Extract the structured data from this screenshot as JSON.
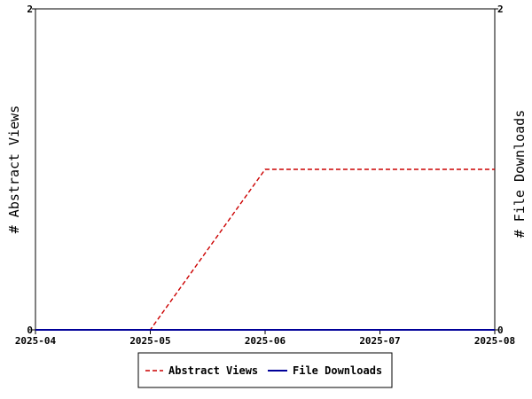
{
  "chart_data": {
    "type": "line",
    "x": [
      "2025-04",
      "2025-05",
      "2025-06",
      "2025-07",
      "2025-08"
    ],
    "x_tick_labels": [
      "2025-04",
      "2025-05",
      "2025-06",
      "2025-07",
      "2025-08"
    ],
    "series": [
      {
        "name": "Abstract Views",
        "axis": "left",
        "values": [
          0,
          0,
          1,
          1,
          1
        ],
        "color": "#cc0000",
        "line_style": "dashed"
      },
      {
        "name": "File Downloads",
        "axis": "right",
        "values": [
          0,
          0,
          0,
          0,
          0
        ],
        "color": "#000099",
        "line_style": "solid"
      }
    ],
    "ylabel_left": "# Abstract Views",
    "ylabel_right": "# File Downloads",
    "ylim_left": [
      0,
      2
    ],
    "ylim_right": [
      0,
      2
    ],
    "y_tick_labels_left": [
      "0",
      "2"
    ],
    "y_tick_labels_right": [
      "0",
      "2"
    ],
    "grid": false,
    "legend_position": "bottom-center"
  }
}
